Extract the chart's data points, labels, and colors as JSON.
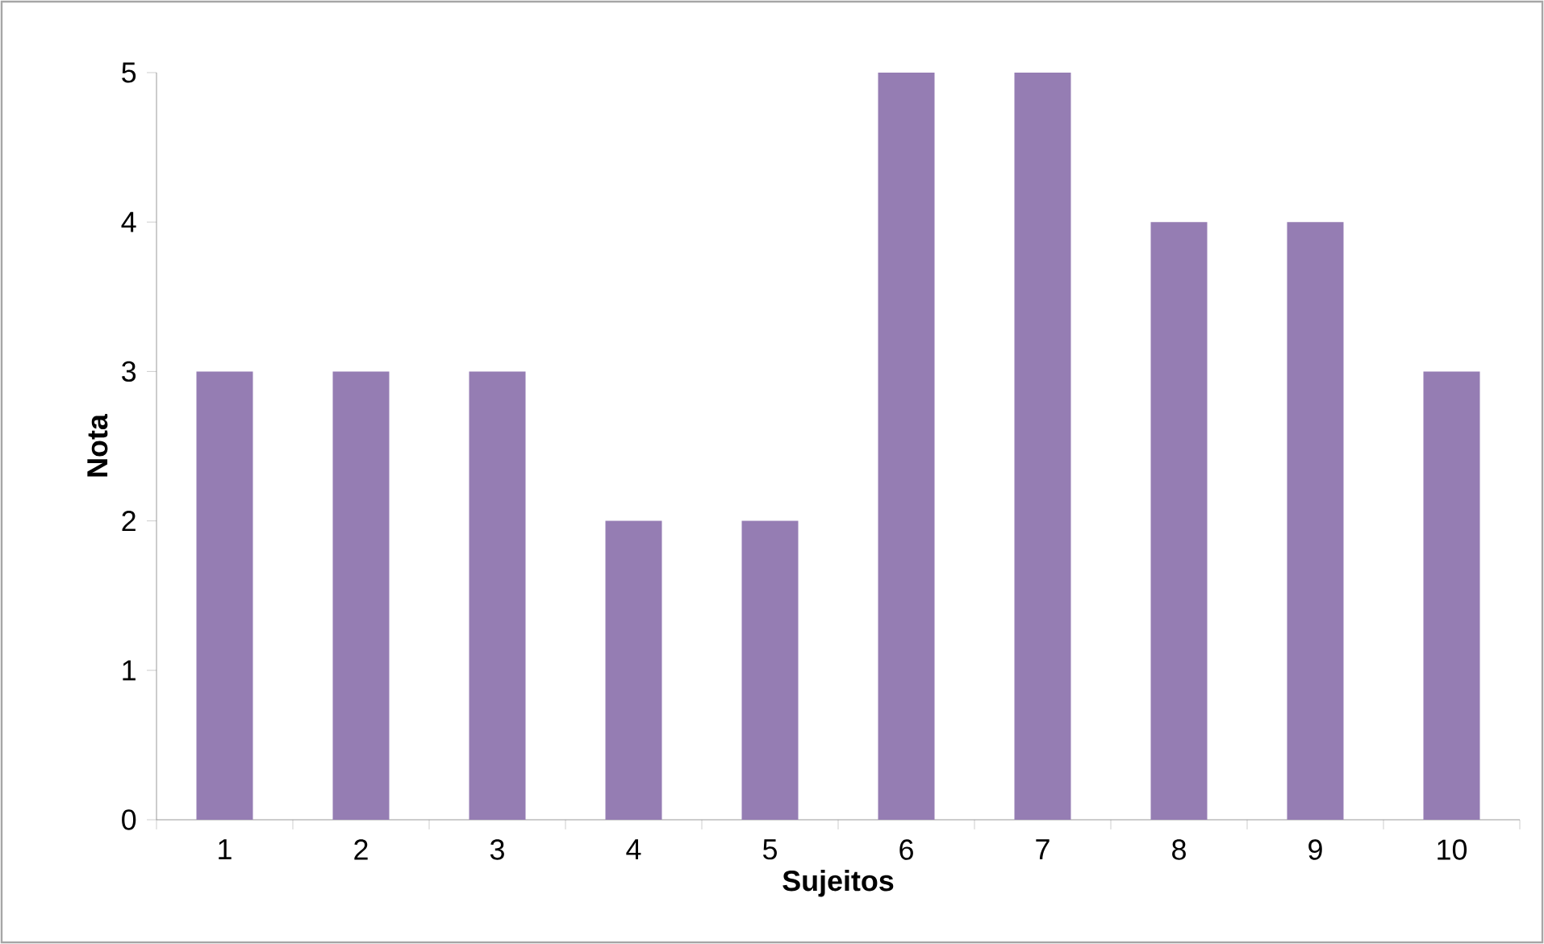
{
  "chart_data": {
    "type": "bar",
    "xlabel": "Sujeitos",
    "ylabel": "Nota",
    "categories": [
      "1",
      "2",
      "3",
      "4",
      "5",
      "6",
      "7",
      "8",
      "9",
      "10"
    ],
    "values": [
      3,
      3,
      3,
      2,
      2,
      5,
      5,
      4,
      4,
      3
    ],
    "color": "#957db3",
    "ylim": [
      0,
      5
    ],
    "yticks": [
      0,
      1,
      2,
      3,
      4,
      5
    ]
  }
}
